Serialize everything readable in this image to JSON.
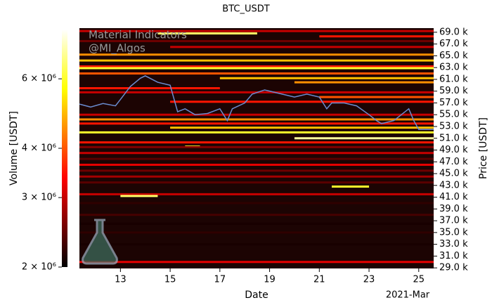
{
  "chart_data": {
    "type": "heatmap",
    "title": "BTC_USDT",
    "watermark": [
      "Material Indicators",
      "@MI_Algos"
    ],
    "x_label": "Date",
    "x_offset_label": "2021-Mar",
    "y_label": "Price [USDT]",
    "colorbar_label": "Volume [USDT]",
    "xlim": [
      11.35,
      25.6
    ],
    "xticks": [
      13,
      15,
      17,
      19,
      21,
      23,
      25
    ],
    "ylim": [
      28900,
      69700
    ],
    "yticks": [
      {
        "value": 29000,
        "label": "29.0 k"
      },
      {
        "value": 31000,
        "label": "31.0 k"
      },
      {
        "value": 33000,
        "label": "33.0 k"
      },
      {
        "value": 35000,
        "label": "35.0 k"
      },
      {
        "value": 37000,
        "label": "37.0 k"
      },
      {
        "value": 39000,
        "label": "39.0 k"
      },
      {
        "value": 41000,
        "label": "41.0 k"
      },
      {
        "value": 43000,
        "label": "43.0 k"
      },
      {
        "value": 45000,
        "label": "45.0 k"
      },
      {
        "value": 47000,
        "label": "47.0 k"
      },
      {
        "value": 49000,
        "label": "49.0 k"
      },
      {
        "value": 51000,
        "label": "51.0 k"
      },
      {
        "value": 53000,
        "label": "53.0 k"
      },
      {
        "value": 55000,
        "label": "55.0 k"
      },
      {
        "value": 57000,
        "label": "57.0 k"
      },
      {
        "value": 59000,
        "label": "59.0 k"
      },
      {
        "value": 61000,
        "label": "61.0 k"
      },
      {
        "value": 63000,
        "label": "63.0 k"
      },
      {
        "value": 65000,
        "label": "65.0 k"
      },
      {
        "value": 67000,
        "label": "67.0 k"
      },
      {
        "value": 69000,
        "label": "69.0 k"
      }
    ],
    "clim": [
      2000000,
      8000000
    ],
    "color_scale": "log",
    "colormap": "hot",
    "cticks": [
      {
        "value": 2000000,
        "label": "2 × 10⁶"
      },
      {
        "value": 3000000,
        "label": "3 × 10⁶"
      },
      {
        "value": 4000000,
        "label": "4 × 10⁶"
      },
      {
        "value": 6000000,
        "label": "6 × 10⁶"
      }
    ],
    "levels": {
      "price": [
        69200,
        68800,
        68300,
        67500,
        66500,
        65200,
        64200,
        63200,
        62900,
        62000,
        61200,
        60500,
        59500,
        58800,
        58000,
        57200,
        55000,
        54200,
        53500,
        52800,
        52000,
        51000,
        50300,
        49600,
        49500,
        48500,
        47500,
        46500,
        45500,
        44500,
        43500,
        42800,
        41500,
        41200,
        40000,
        38000,
        36500,
        35000,
        33000,
        30000
      ],
      "start": [
        11.35,
        14.5,
        21,
        11.35,
        15,
        11.35,
        11.35,
        11.35,
        11.35,
        11.35,
        17,
        20,
        11.35,
        11.35,
        21,
        15,
        11.35,
        11.35,
        11.35,
        15,
        11.35,
        20,
        11.35,
        15.6,
        11.35,
        11.35,
        11.35,
        11.35,
        11.35,
        11.35,
        11.35,
        21.5,
        11.35,
        13,
        11.35,
        11.35,
        11.35,
        11.35,
        11.35,
        11.35
      ],
      "end": [
        25.6,
        18.5,
        25.6,
        25.6,
        25.6,
        25.6,
        25.6,
        25.6,
        25.6,
        25.6,
        25.6,
        25.6,
        17,
        25.6,
        25.6,
        25.6,
        25.6,
        25.6,
        25.6,
        25.6,
        25.6,
        25.6,
        25.6,
        16.2,
        25.6,
        25.6,
        25.6,
        25.6,
        25.6,
        25.6,
        25.6,
        23,
        25.6,
        14.5,
        25.6,
        25.6,
        25.6,
        25.6,
        25.6,
        25.6
      ],
      "volume": [
        3000000,
        6500000,
        3500000,
        2500000,
        3000000,
        4500000,
        5000000,
        3500000,
        6000000,
        4000000,
        5000000,
        4500000,
        3500000,
        3000000,
        4000000,
        3500000,
        3000000,
        4500000,
        3500000,
        5000000,
        6000000,
        7000000,
        3500000,
        6000000,
        2600000,
        3000000,
        2400000,
        3200000,
        2500000,
        2800000,
        2400000,
        6000000,
        3000000,
        6500000,
        2200000,
        2300000,
        2100000,
        2200000,
        2100000,
        3200000
      ]
    },
    "price_line": {
      "color": "#6a8cd0",
      "x": [
        11.35,
        11.8,
        12.3,
        12.8,
        13.0,
        13.4,
        13.8,
        14.0,
        14.5,
        15.0,
        15.3,
        15.6,
        16.0,
        16.5,
        17.0,
        17.3,
        17.5,
        18.0,
        18.3,
        18.8,
        19.5,
        20.0,
        20.5,
        21.0,
        21.3,
        21.5,
        22.0,
        22.5,
        23.0,
        23.3,
        23.5,
        24.0,
        24.3,
        24.6,
        24.8,
        25.0,
        25.3,
        25.6
      ],
      "values": [
        56800,
        56300,
        56900,
        56500,
        57600,
        59800,
        61200,
        61600,
        60500,
        60000,
        55500,
        56000,
        55000,
        55200,
        56000,
        54000,
        56000,
        57000,
        58500,
        59200,
        58500,
        58000,
        58500,
        58000,
        56000,
        57000,
        57000,
        56500,
        55000,
        54000,
        53500,
        54000,
        55000,
        56000,
        54000,
        52500,
        52500,
        52500
      ]
    }
  }
}
